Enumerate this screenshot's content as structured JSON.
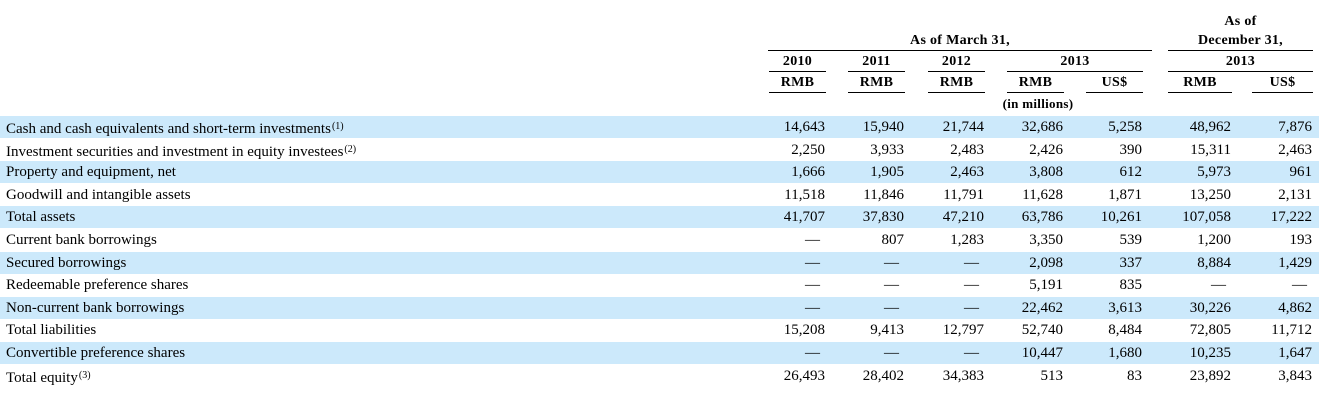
{
  "header": {
    "as_of_march": "As of March 31,",
    "as_of_december_line1": "As of",
    "as_of_december_line2": "December 31,",
    "years": [
      "2010",
      "2011",
      "2012",
      "2013",
      "2013"
    ],
    "currencies": [
      "RMB",
      "RMB",
      "RMB",
      "RMB",
      "US$",
      "RMB",
      "US$"
    ],
    "units": "(in millions)"
  },
  "rows": [
    {
      "label": "Cash and cash equivalents and short-term investments",
      "note": "(1)",
      "values": [
        "14,643",
        "15,940",
        "21,744",
        "32,686",
        "5,258",
        "48,962",
        "7,876"
      ]
    },
    {
      "label": "Investment securities and investment in equity investees",
      "note": "(2)",
      "values": [
        "2,250",
        "3,933",
        "2,483",
        "2,426",
        "390",
        "15,311",
        "2,463"
      ]
    },
    {
      "label": "Property and equipment, net",
      "note": "",
      "values": [
        "1,666",
        "1,905",
        "2,463",
        "3,808",
        "612",
        "5,973",
        "961"
      ]
    },
    {
      "label": "Goodwill and intangible assets",
      "note": "",
      "values": [
        "11,518",
        "11,846",
        "11,791",
        "11,628",
        "1,871",
        "13,250",
        "2,131"
      ]
    },
    {
      "label": "Total assets",
      "note": "",
      "values": [
        "41,707",
        "37,830",
        "47,210",
        "63,786",
        "10,261",
        "107,058",
        "17,222"
      ]
    },
    {
      "label": "Current bank borrowings",
      "note": "",
      "values": [
        "—",
        "807",
        "1,283",
        "3,350",
        "539",
        "1,200",
        "193"
      ]
    },
    {
      "label": "Secured borrowings",
      "note": "",
      "values": [
        "—",
        "—",
        "—",
        "2,098",
        "337",
        "8,884",
        "1,429"
      ]
    },
    {
      "label": "Redeemable preference shares",
      "note": "",
      "values": [
        "—",
        "—",
        "—",
        "5,191",
        "835",
        "—",
        "—"
      ]
    },
    {
      "label": "Non-current bank borrowings",
      "note": "",
      "values": [
        "—",
        "—",
        "—",
        "22,462",
        "3,613",
        "30,226",
        "4,862"
      ]
    },
    {
      "label": "Total liabilities",
      "note": "",
      "values": [
        "15,208",
        "9,413",
        "12,797",
        "52,740",
        "8,484",
        "72,805",
        "11,712"
      ]
    },
    {
      "label": "Convertible preference shares",
      "note": "",
      "values": [
        "—",
        "—",
        "—",
        "10,447",
        "1,680",
        "10,235",
        "1,647"
      ]
    },
    {
      "label": "Total equity",
      "note": "(3)",
      "values": [
        "26,493",
        "28,402",
        "34,383",
        "513",
        "83",
        "23,892",
        "3,843"
      ]
    }
  ]
}
